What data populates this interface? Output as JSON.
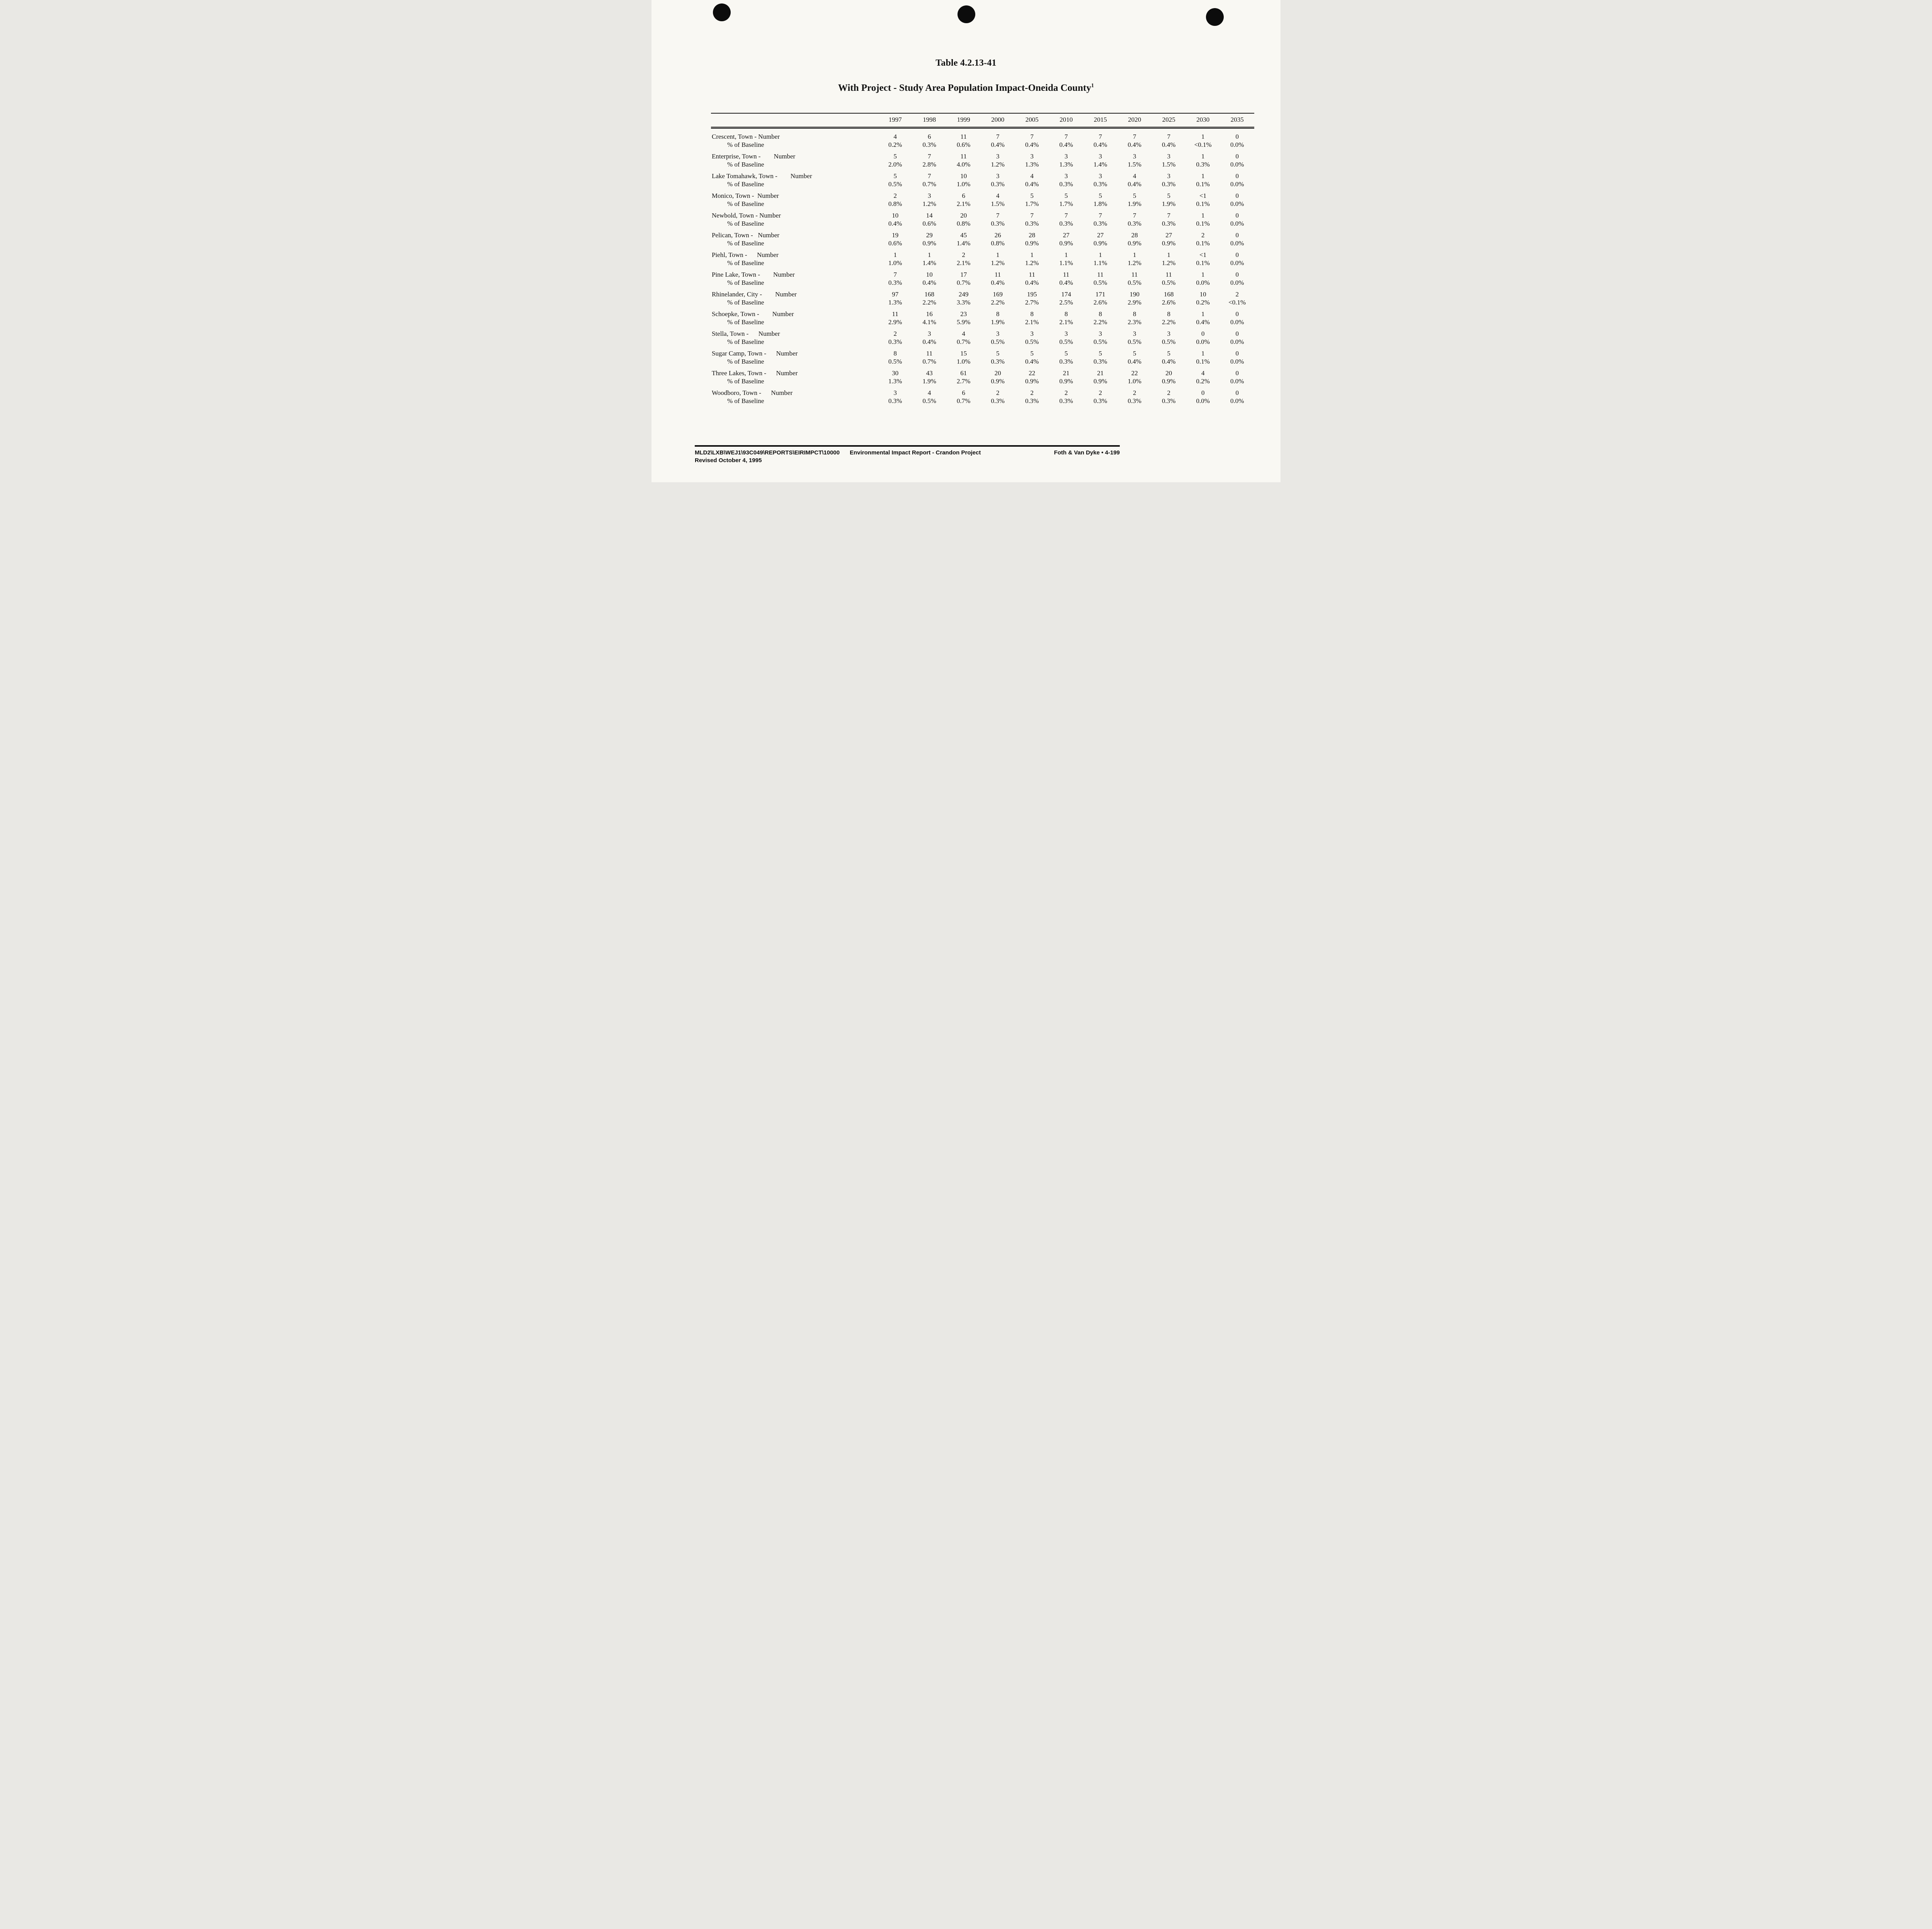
{
  "page": {
    "title": "Table 4.2.13-41",
    "subtitle": "With Project - Study Area Population Impact-Oneida County",
    "footnote_marker": "1"
  },
  "table": {
    "year_headers": [
      "1997",
      "1998",
      "1999",
      "2000",
      "2005",
      "2010",
      "2015",
      "2020",
      "2025",
      "2030",
      "2035"
    ],
    "pct_label": "% of Baseline",
    "rows": [
      {
        "label": "Crescent, Town - Number",
        "numbers": [
          "4",
          "6",
          "11",
          "7",
          "7",
          "7",
          "7",
          "7",
          "7",
          "1",
          "0"
        ],
        "percents": [
          "0.2%",
          "0.3%",
          "0.6%",
          "0.4%",
          "0.4%",
          "0.4%",
          "0.4%",
          "0.4%",
          "0.4%",
          "<0.1%",
          "0.0%"
        ]
      },
      {
        "label": "Enterprise, Town -        Number",
        "numbers": [
          "5",
          "7",
          "11",
          "3",
          "3",
          "3",
          "3",
          "3",
          "3",
          "1",
          "0"
        ],
        "percents": [
          "2.0%",
          "2.8%",
          "4.0%",
          "1.2%",
          "1.3%",
          "1.3%",
          "1.4%",
          "1.5%",
          "1.5%",
          "0.3%",
          "0.0%"
        ]
      },
      {
        "label": "Lake Tomahawk, Town -        Number",
        "numbers": [
          "5",
          "7",
          "10",
          "3",
          "4",
          "3",
          "3",
          "4",
          "3",
          "1",
          "0"
        ],
        "percents": [
          "0.5%",
          "0.7%",
          "1.0%",
          "0.3%",
          "0.4%",
          "0.3%",
          "0.3%",
          "0.4%",
          "0.3%",
          "0.1%",
          "0.0%"
        ]
      },
      {
        "label": "Monico, Town -  Number",
        "numbers": [
          "2",
          "3",
          "6",
          "4",
          "5",
          "5",
          "5",
          "5",
          "5",
          "<1",
          "0"
        ],
        "percents": [
          "0.8%",
          "1.2%",
          "2.1%",
          "1.5%",
          "1.7%",
          "1.7%",
          "1.8%",
          "1.9%",
          "1.9%",
          "0.1%",
          "0.0%"
        ]
      },
      {
        "label": "Newbold, Town - Number",
        "numbers": [
          "10",
          "14",
          "20",
          "7",
          "7",
          "7",
          "7",
          "7",
          "7",
          "1",
          "0"
        ],
        "percents": [
          "0.4%",
          "0.6%",
          "0.8%",
          "0.3%",
          "0.3%",
          "0.3%",
          "0.3%",
          "0.3%",
          "0.3%",
          "0.1%",
          "0.0%"
        ]
      },
      {
        "label": "Pelican, Town -   Number",
        "numbers": [
          "19",
          "29",
          "45",
          "26",
          "28",
          "27",
          "27",
          "28",
          "27",
          "2",
          "0"
        ],
        "percents": [
          "0.6%",
          "0.9%",
          "1.4%",
          "0.8%",
          "0.9%",
          "0.9%",
          "0.9%",
          "0.9%",
          "0.9%",
          "0.1%",
          "0.0%"
        ]
      },
      {
        "label": "Piehl, Town -      Number",
        "numbers": [
          "1",
          "1",
          "2",
          "1",
          "1",
          "1",
          "1",
          "1",
          "1",
          "<1",
          "0"
        ],
        "percents": [
          "1.0%",
          "1.4%",
          "2.1%",
          "1.2%",
          "1.2%",
          "1.1%",
          "1.1%",
          "1.2%",
          "1.2%",
          "0.1%",
          "0.0%"
        ]
      },
      {
        "label": "Pine Lake, Town -        Number",
        "numbers": [
          "7",
          "10",
          "17",
          "11",
          "11",
          "11",
          "11",
          "11",
          "11",
          "1",
          "0"
        ],
        "percents": [
          "0.3%",
          "0.4%",
          "0.7%",
          "0.4%",
          "0.4%",
          "0.4%",
          "0.5%",
          "0.5%",
          "0.5%",
          "0.0%",
          "0.0%"
        ]
      },
      {
        "label": "Rhinelander, City -        Number",
        "numbers": [
          "97",
          "168",
          "249",
          "169",
          "195",
          "174",
          "171",
          "190",
          "168",
          "10",
          "2"
        ],
        "percents": [
          "1.3%",
          "2.2%",
          "3.3%",
          "2.2%",
          "2.7%",
          "2.5%",
          "2.6%",
          "2.9%",
          "2.6%",
          "0.2%",
          "<0.1%"
        ]
      },
      {
        "label": "Schoepke, Town -        Number",
        "numbers": [
          "11",
          "16",
          "23",
          "8",
          "8",
          "8",
          "8",
          "8",
          "8",
          "1",
          "0"
        ],
        "percents": [
          "2.9%",
          "4.1%",
          "5.9%",
          "1.9%",
          "2.1%",
          "2.1%",
          "2.2%",
          "2.3%",
          "2.2%",
          "0.4%",
          "0.0%"
        ]
      },
      {
        "label": "Stella, Town -      Number",
        "numbers": [
          "2",
          "3",
          "4",
          "3",
          "3",
          "3",
          "3",
          "3",
          "3",
          "0",
          "0"
        ],
        "percents": [
          "0.3%",
          "0.4%",
          "0.7%",
          "0.5%",
          "0.5%",
          "0.5%",
          "0.5%",
          "0.5%",
          "0.5%",
          "0.0%",
          "0.0%"
        ]
      },
      {
        "label": "Sugar Camp, Town -      Number",
        "numbers": [
          "8",
          "11",
          "15",
          "5",
          "5",
          "5",
          "5",
          "5",
          "5",
          "1",
          "0"
        ],
        "percents": [
          "0.5%",
          "0.7%",
          "1.0%",
          "0.3%",
          "0.4%",
          "0.3%",
          "0.3%",
          "0.4%",
          "0.4%",
          "0.1%",
          "0.0%"
        ]
      },
      {
        "label": "Three Lakes, Town -      Number",
        "numbers": [
          "30",
          "43",
          "61",
          "20",
          "22",
          "21",
          "21",
          "22",
          "20",
          "4",
          "0"
        ],
        "percents": [
          "1.3%",
          "1.9%",
          "2.7%",
          "0.9%",
          "0.9%",
          "0.9%",
          "0.9%",
          "1.0%",
          "0.9%",
          "0.2%",
          "0.0%"
        ]
      },
      {
        "label": "Woodboro, Town -      Number",
        "numbers": [
          "3",
          "4",
          "6",
          "2",
          "2",
          "2",
          "2",
          "2",
          "2",
          "0",
          "0"
        ],
        "percents": [
          "0.3%",
          "0.5%",
          "0.7%",
          "0.3%",
          "0.3%",
          "0.3%",
          "0.3%",
          "0.3%",
          "0.3%",
          "0.0%",
          "0.0%"
        ]
      }
    ]
  },
  "footer": {
    "path": "MLD2\\LXB\\WEJ1\\93C049\\REPORTS\\EIRIMPCT\\10000",
    "report_title": "Environmental Impact Report - Crandon Project",
    "publisher_page": "Foth & Van Dyke • 4-199",
    "revised": "Revised October 4, 1995"
  }
}
